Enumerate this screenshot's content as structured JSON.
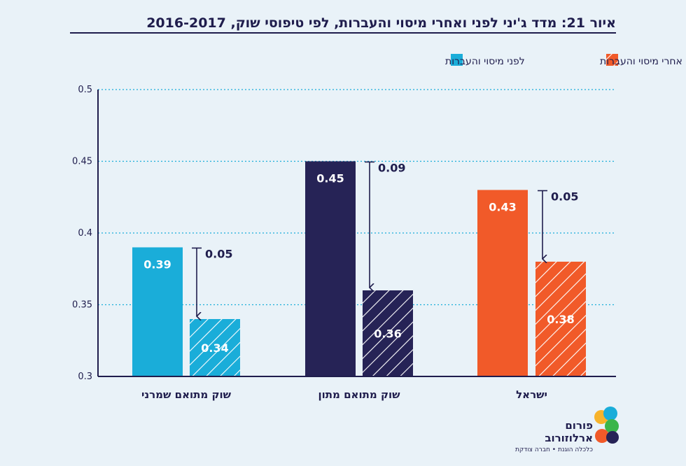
{
  "figure": {
    "title": "איור 21: מדד ג'יני לפני ואחרי מיסוי והעברות, לפי טיפוסי שוק, 2016-2017"
  },
  "legend": {
    "before": "לפני מיסוי והעברות",
    "after": "אחרי מיסוי והעברות"
  },
  "colors": {
    "israel": "#f15a29",
    "middle": "#262356",
    "conservative": "#1aadd9",
    "axis": "#1f1d4d",
    "grid": "#1aadd9"
  },
  "chart_data": {
    "type": "bar",
    "title": "איור 21: מדד ג'יני לפני ואחרי מיסוי והעברות, לפי טיפוסי שוק, 2016-2017",
    "xlabel": "",
    "ylabel": "",
    "ylim": [
      0.3,
      0.5
    ],
    "yticks": [
      "0.3",
      "0.35",
      "0.4",
      "0.45",
      "0.5"
    ],
    "grid": true,
    "legend_position": "top",
    "categories": [
      "ישראל",
      "שוק מתואם מתון",
      "שוק מתואם שמרני"
    ],
    "series": [
      {
        "name": "לפני מיסוי והעברות",
        "values": [
          0.43,
          0.45,
          0.39
        ],
        "labels": [
          "0.43",
          "0.45",
          "0.39"
        ]
      },
      {
        "name": "אחרי מיסוי והעברות",
        "values": [
          0.38,
          0.36,
          0.34
        ],
        "labels": [
          "0.38",
          "0.36",
          "0.34"
        ]
      }
    ],
    "differences": [
      "0.05",
      "0.09",
      "0.05"
    ]
  },
  "logo": {
    "name_line1": "פורום",
    "name_line2": "ארלוזורוב",
    "tagline": "כלכלה הוגנת • חברה צודקת"
  }
}
